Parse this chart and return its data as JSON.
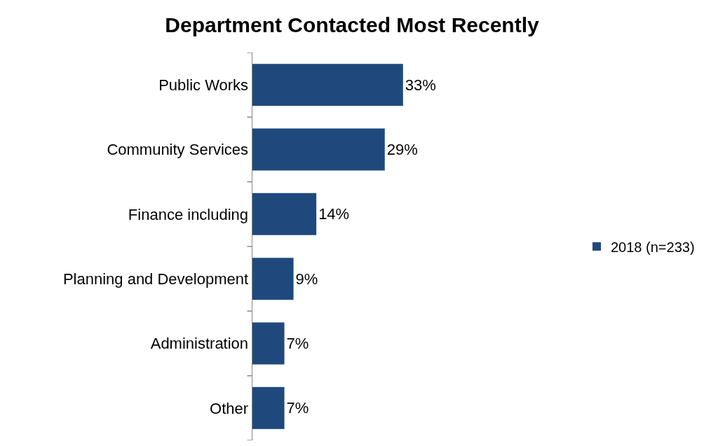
{
  "chart_data": {
    "type": "bar",
    "orientation": "horizontal",
    "title": "Department Contacted Most Recently",
    "categories": [
      "Public Works",
      "Community Services",
      "Finance including",
      "Planning and Development",
      "Administration",
      "Other"
    ],
    "series": [
      {
        "name": "2018 (n=233)",
        "color": "#1f497d",
        "values": [
          33,
          29,
          14,
          9,
          7,
          7
        ],
        "value_labels": [
          "33%",
          "29%",
          "14%",
          "9%",
          "7%",
          "7%"
        ]
      }
    ],
    "legend": "right",
    "grid": false
  }
}
